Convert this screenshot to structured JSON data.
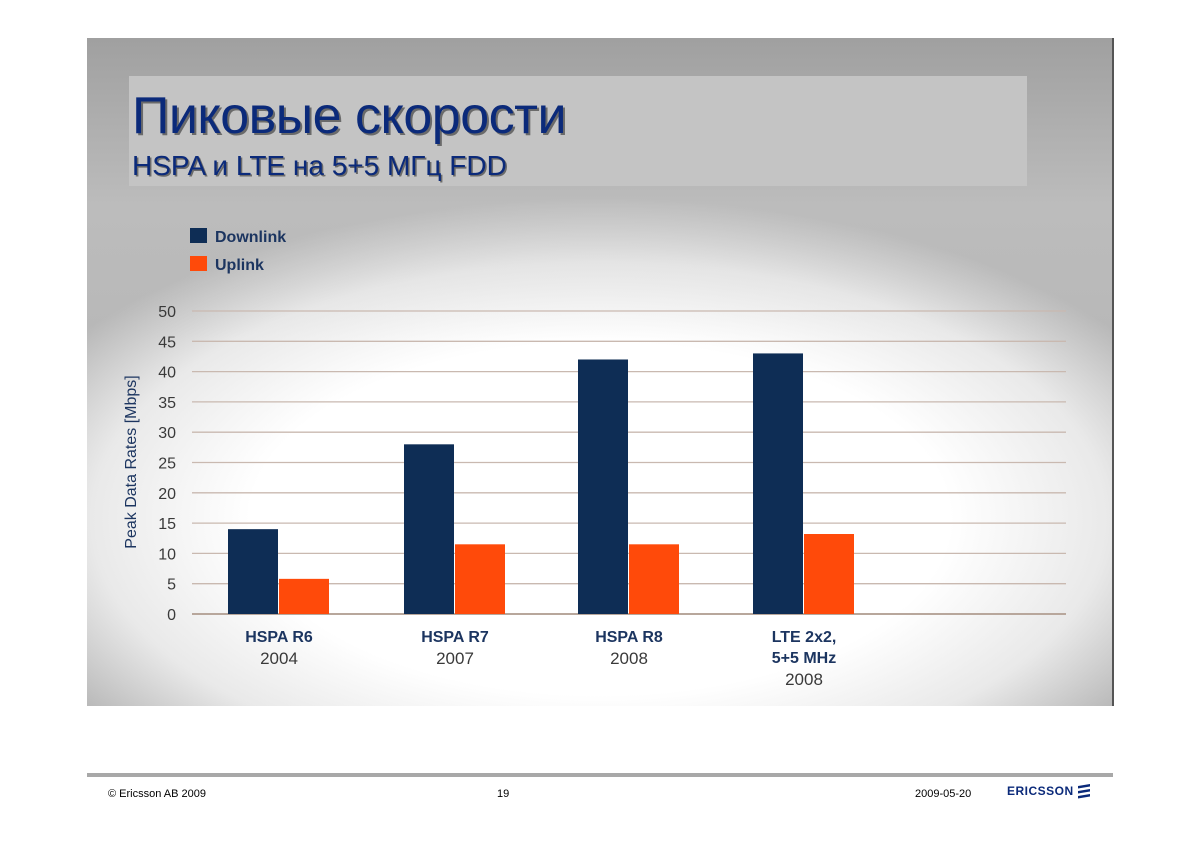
{
  "slide": {
    "title": "Пиковые скорости",
    "subtitle": "HSPA и LTE на 5+5 МГц FDD"
  },
  "footer": {
    "copyright": "© Ericsson AB 2009",
    "page_number": "19",
    "date": "2009-05-20",
    "logo_text": "ERICSSON",
    "logo_icon": "ericsson-logo-icon"
  },
  "colors": {
    "downlink": "#0e2d55",
    "uplink": "#ff4a0a",
    "title": "#0b2a7a",
    "grid": "#c9b9b0"
  },
  "chart_data": {
    "type": "bar",
    "title": "",
    "xlabel": "",
    "ylabel": "Peak Data Rates [Mbps]",
    "ylim": [
      0,
      50
    ],
    "yticks": [
      0,
      5,
      10,
      15,
      20,
      25,
      30,
      35,
      40,
      45,
      50
    ],
    "grid": true,
    "legend_position": "top-left",
    "categories": [
      {
        "lines": [
          "HSPA R6"
        ],
        "year": "2004"
      },
      {
        "lines": [
          "HSPA R7"
        ],
        "year": "2007"
      },
      {
        "lines": [
          "HSPA R8"
        ],
        "year": "2008"
      },
      {
        "lines": [
          "LTE 2x2,",
          "5+5 MHz"
        ],
        "year": "2008"
      }
    ],
    "series": [
      {
        "name": "Downlink",
        "values": [
          14,
          28,
          42,
          43
        ]
      },
      {
        "name": "Uplink",
        "values": [
          5.8,
          11.5,
          11.5,
          13.2
        ]
      }
    ]
  }
}
